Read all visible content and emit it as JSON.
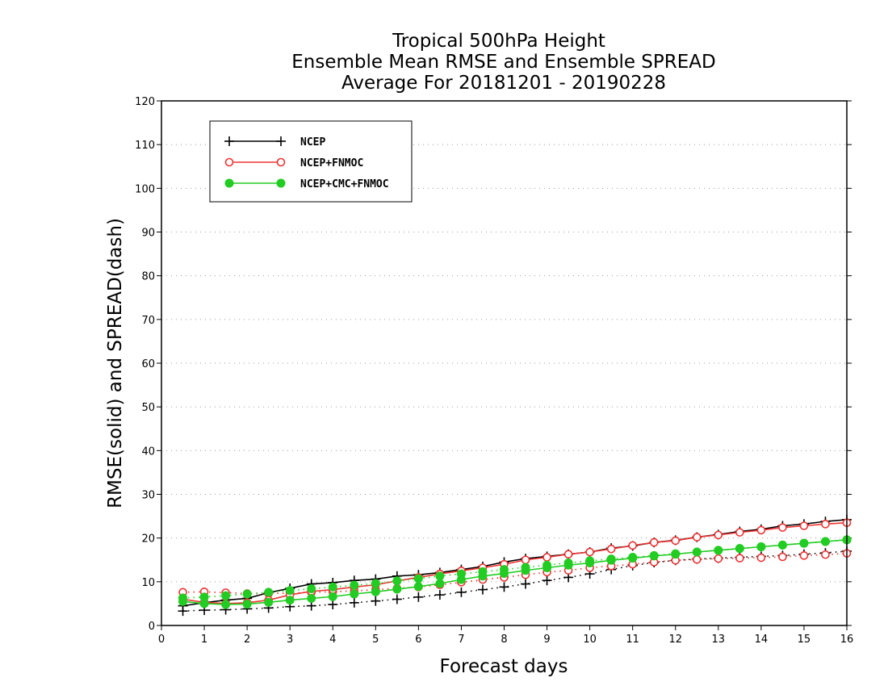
{
  "chart_data": {
    "type": "line",
    "title": [
      "Tropical 500hPa Height",
      "Ensemble Mean RMSE and Ensemble SPREAD",
      "Average For 20181201 - 20190228"
    ],
    "xlabel": "Forecast days",
    "ylabel": "RMSE(solid) and SPREAD(dash)",
    "xlim": [
      0,
      16
    ],
    "ylim": [
      0,
      120
    ],
    "xticks": [
      0,
      1,
      2,
      3,
      4,
      5,
      6,
      7,
      8,
      9,
      10,
      11,
      12,
      13,
      14,
      15,
      16
    ],
    "yticks": [
      0,
      10,
      20,
      30,
      40,
      50,
      60,
      70,
      80,
      90,
      100,
      110,
      120
    ],
    "grid": "horizontal dotted",
    "legend_position": "top-left",
    "x": [
      0.5,
      1,
      1.5,
      2,
      2.5,
      3,
      3.5,
      4,
      4.5,
      5,
      5.5,
      6,
      6.5,
      7,
      7.5,
      8,
      8.5,
      9,
      9.5,
      10,
      10.5,
      11,
      11.5,
      12,
      12.5,
      13,
      13.5,
      14,
      14.5,
      15,
      15.5,
      16
    ],
    "series": [
      {
        "name": "NCEP",
        "color": "#000000",
        "marker": "plus",
        "rmse": [
          4.5,
          5.2,
          5.8,
          6.2,
          7.5,
          8.5,
          9.5,
          9.8,
          10.3,
          10.6,
          11.3,
          11.6,
          12.1,
          12.8,
          13.5,
          14.5,
          15.3,
          15.8,
          16.3,
          16.8,
          17.7,
          18.2,
          19.0,
          19.5,
          20.2,
          20.8,
          21.5,
          22.0,
          22.8,
          23.2,
          23.8,
          24.2
        ],
        "spread": [
          3.3,
          3.5,
          3.6,
          3.8,
          4.0,
          4.3,
          4.5,
          4.8,
          5.2,
          5.6,
          6.0,
          6.5,
          7.0,
          7.6,
          8.2,
          8.8,
          9.5,
          10.3,
          11.0,
          11.8,
          12.8,
          13.7,
          14.4,
          14.9,
          15.2,
          15.4,
          15.6,
          15.8,
          16.0,
          16.3,
          16.6,
          17.0
        ]
      },
      {
        "name": "NCEP+FNMOC",
        "color": "#ee3333",
        "marker": "open-circle",
        "rmse": [
          6.0,
          5.3,
          5.0,
          5.2,
          5.8,
          7.0,
          7.8,
          8.2,
          8.8,
          9.3,
          10.2,
          11.0,
          11.8,
          12.5,
          13.2,
          14.0,
          15.0,
          15.6,
          16.3,
          16.8,
          17.5,
          18.3,
          19.0,
          19.4,
          20.2,
          20.7,
          21.3,
          21.8,
          22.4,
          22.8,
          23.2,
          23.5
        ],
        "spread": [
          7.6,
          7.7,
          7.5,
          7.3,
          7.3,
          7.4,
          7.6,
          7.7,
          7.9,
          8.2,
          8.5,
          8.8,
          9.3,
          9.9,
          10.5,
          11.0,
          11.6,
          12.2,
          12.6,
          13.2,
          13.6,
          14.0,
          14.5,
          14.9,
          15.1,
          15.3,
          15.4,
          15.5,
          15.7,
          16.0,
          16.2,
          16.5
        ]
      },
      {
        "name": "NCEP+CMC+FNMOC",
        "color": "#22cc22",
        "marker": "filled-circle",
        "rmse": [
          5.5,
          5.0,
          4.8,
          4.9,
          5.3,
          5.8,
          6.2,
          6.6,
          7.2,
          7.7,
          8.3,
          8.9,
          9.6,
          10.5,
          11.3,
          11.9,
          12.6,
          13.2,
          13.8,
          14.3,
          14.9,
          15.4,
          15.9,
          16.3,
          16.8,
          17.2,
          17.6,
          18.0,
          18.4,
          18.8,
          19.2,
          19.6
        ],
        "spread": [
          6.3,
          6.5,
          6.8,
          7.2,
          7.6,
          8.0,
          8.4,
          8.8,
          9.2,
          9.6,
          10.2,
          10.7,
          11.3,
          11.8,
          12.3,
          12.8,
          13.3,
          13.8,
          14.3,
          14.8,
          15.2,
          15.6,
          16.0,
          16.4,
          16.8,
          17.2,
          17.6,
          18.0,
          18.4,
          18.8,
          19.2,
          19.6
        ]
      }
    ]
  }
}
